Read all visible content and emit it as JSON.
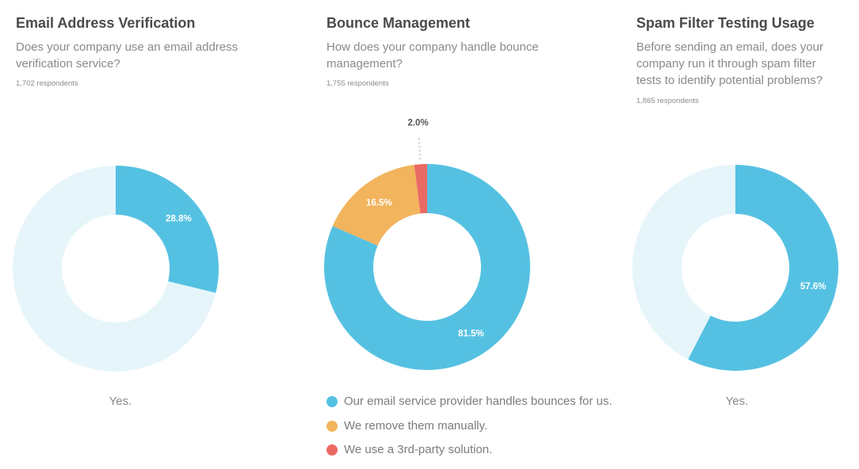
{
  "colors": {
    "blue": "#55c1e2",
    "light": "#e6f5fa",
    "orange": "#f2b45d",
    "red": "#ea6a63"
  },
  "panels": [
    {
      "title": "Email Address Verification",
      "question": "Does your company use an email address verification service?",
      "respondents": "1,702 respondents",
      "caption": "Yes."
    },
    {
      "title": "Bounce Management",
      "question": "How does your company handle bounce management?",
      "respondents": "1,755 respondents",
      "legend": [
        "Our email service provider handles bounces for us.",
        "We remove them manually.",
        "We use a 3rd-party solution."
      ]
    },
    {
      "title": "Spam Filter Testing Usage",
      "question": "Before sending an email, does your company run it through spam filter tests to identify potential problems?",
      "respondents": "1,865 respondents",
      "caption": "Yes."
    }
  ],
  "chart_data": [
    {
      "type": "pie",
      "title": "Email Address Verification",
      "slices": [
        {
          "name": "Yes.",
          "value": 28.8,
          "label": "28.8%",
          "color": "#55c1e2"
        },
        {
          "name": "",
          "value": 71.2,
          "label": "",
          "color": "#e6f5fa"
        }
      ]
    },
    {
      "type": "pie",
      "title": "Bounce Management",
      "slices": [
        {
          "name": "Our email service provider handles bounces for us.",
          "value": 81.5,
          "label": "81.5%",
          "color": "#55c1e2"
        },
        {
          "name": "We remove them manually.",
          "value": 16.5,
          "label": "16.5%",
          "color": "#f2b45d"
        },
        {
          "name": "We use a 3rd-party solution.",
          "value": 2.0,
          "label": "2.0%",
          "color": "#ea6a63",
          "label_outside": true
        }
      ]
    },
    {
      "type": "pie",
      "title": "Spam Filter Testing Usage",
      "slices": [
        {
          "name": "Yes.",
          "value": 57.6,
          "label": "57.6%",
          "color": "#55c1e2"
        },
        {
          "name": "",
          "value": 42.4,
          "label": "",
          "color": "#e6f5fa"
        }
      ]
    }
  ]
}
